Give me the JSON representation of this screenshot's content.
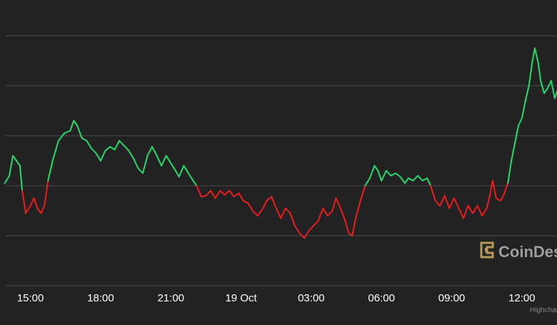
{
  "chart_data": {
    "type": "line",
    "title": "",
    "xlabel": "",
    "ylabel": "",
    "x_tick_labels": [
      "15:00",
      "18:00",
      "21:00",
      "19 Oct",
      "03:00",
      "06:00",
      "09:00",
      "12:00"
    ],
    "x_tick_hours": [
      0,
      3,
      6,
      9,
      12,
      15,
      18,
      21
    ],
    "x_range_hours": [
      -1.3,
      22.5
    ],
    "y_range_relative": [
      0,
      5.2
    ],
    "grid": true,
    "baseline_relative": 2.0,
    "colors": {
      "background": "#222222",
      "grid": "#4a4a4a",
      "up": "#26d96b",
      "down": "#ee1c1c",
      "axis_text": "#ffffff",
      "credit_text": "#888888",
      "logo_gold": "#b89a56",
      "logo_text": "#9d9d9d"
    },
    "series": [
      {
        "points": [
          [
            -1.1,
            2.05
          ],
          [
            -0.9,
            2.2
          ],
          [
            -0.75,
            2.6
          ],
          [
            -0.6,
            2.5
          ],
          [
            -0.45,
            2.4
          ],
          [
            -0.35,
            1.9
          ],
          [
            -0.2,
            1.45
          ],
          [
            0.0,
            1.6
          ],
          [
            0.15,
            1.75
          ],
          [
            0.3,
            1.55
          ],
          [
            0.45,
            1.45
          ],
          [
            0.6,
            1.6
          ],
          [
            0.75,
            2.1
          ],
          [
            0.95,
            2.5
          ],
          [
            1.2,
            2.9
          ],
          [
            1.45,
            3.05
          ],
          [
            1.7,
            3.1
          ],
          [
            1.85,
            3.3
          ],
          [
            2.0,
            3.2
          ],
          [
            2.2,
            2.95
          ],
          [
            2.4,
            2.9
          ],
          [
            2.6,
            2.75
          ],
          [
            2.8,
            2.65
          ],
          [
            3.0,
            2.5
          ],
          [
            3.2,
            2.7
          ],
          [
            3.4,
            2.78
          ],
          [
            3.6,
            2.72
          ],
          [
            3.8,
            2.9
          ],
          [
            4.0,
            2.8
          ],
          [
            4.2,
            2.7
          ],
          [
            4.4,
            2.55
          ],
          [
            4.6,
            2.35
          ],
          [
            4.8,
            2.25
          ],
          [
            5.0,
            2.6
          ],
          [
            5.2,
            2.78
          ],
          [
            5.4,
            2.6
          ],
          [
            5.6,
            2.4
          ],
          [
            5.8,
            2.6
          ],
          [
            6.0,
            2.45
          ],
          [
            6.2,
            2.3
          ],
          [
            6.35,
            2.18
          ],
          [
            6.55,
            2.4
          ],
          [
            6.75,
            2.25
          ],
          [
            6.95,
            2.1
          ],
          [
            7.1,
            2.0
          ],
          [
            7.3,
            1.78
          ],
          [
            7.5,
            1.8
          ],
          [
            7.7,
            1.9
          ],
          [
            7.9,
            1.75
          ],
          [
            8.1,
            1.9
          ],
          [
            8.3,
            1.82
          ],
          [
            8.5,
            1.9
          ],
          [
            8.7,
            1.78
          ],
          [
            8.9,
            1.85
          ],
          [
            9.1,
            1.7
          ],
          [
            9.3,
            1.65
          ],
          [
            9.5,
            1.5
          ],
          [
            9.7,
            1.4
          ],
          [
            9.9,
            1.52
          ],
          [
            10.1,
            1.7
          ],
          [
            10.3,
            1.78
          ],
          [
            10.5,
            1.55
          ],
          [
            10.7,
            1.35
          ],
          [
            10.9,
            1.55
          ],
          [
            11.1,
            1.45
          ],
          [
            11.3,
            1.2
          ],
          [
            11.5,
            1.05
          ],
          [
            11.7,
            0.95
          ],
          [
            11.9,
            1.1
          ],
          [
            12.1,
            1.2
          ],
          [
            12.3,
            1.3
          ],
          [
            12.5,
            1.55
          ],
          [
            12.7,
            1.4
          ],
          [
            12.9,
            1.5
          ],
          [
            13.05,
            1.75
          ],
          [
            13.25,
            1.55
          ],
          [
            13.45,
            1.3
          ],
          [
            13.6,
            1.05
          ],
          [
            13.75,
            1.0
          ],
          [
            13.9,
            1.35
          ],
          [
            14.1,
            1.7
          ],
          [
            14.3,
            2.0
          ],
          [
            14.5,
            2.15
          ],
          [
            14.7,
            2.4
          ],
          [
            14.85,
            2.3
          ],
          [
            15.0,
            2.1
          ],
          [
            15.2,
            2.3
          ],
          [
            15.4,
            2.2
          ],
          [
            15.6,
            2.25
          ],
          [
            15.8,
            2.18
          ],
          [
            16.0,
            2.05
          ],
          [
            16.15,
            2.15
          ],
          [
            16.35,
            2.1
          ],
          [
            16.55,
            2.2
          ],
          [
            16.75,
            2.1
          ],
          [
            16.95,
            2.15
          ],
          [
            17.1,
            2.0
          ],
          [
            17.3,
            1.7
          ],
          [
            17.5,
            1.6
          ],
          [
            17.7,
            1.8
          ],
          [
            17.9,
            1.55
          ],
          [
            18.1,
            1.75
          ],
          [
            18.3,
            1.55
          ],
          [
            18.5,
            1.35
          ],
          [
            18.7,
            1.6
          ],
          [
            18.9,
            1.45
          ],
          [
            19.1,
            1.6
          ],
          [
            19.3,
            1.4
          ],
          [
            19.5,
            1.55
          ],
          [
            19.65,
            1.85
          ],
          [
            19.75,
            2.1
          ],
          [
            19.9,
            1.75
          ],
          [
            20.1,
            1.7
          ],
          [
            20.25,
            1.85
          ],
          [
            20.4,
            2.05
          ],
          [
            20.55,
            2.5
          ],
          [
            20.7,
            2.85
          ],
          [
            20.85,
            3.2
          ],
          [
            21.0,
            3.35
          ],
          [
            21.15,
            3.7
          ],
          [
            21.3,
            4.0
          ],
          [
            21.45,
            4.5
          ],
          [
            21.55,
            4.75
          ],
          [
            21.7,
            4.45
          ],
          [
            21.8,
            4.1
          ],
          [
            21.95,
            3.85
          ],
          [
            22.1,
            3.95
          ],
          [
            22.25,
            4.1
          ],
          [
            22.4,
            3.75
          ],
          [
            22.55,
            3.95
          ],
          [
            22.7,
            4.15
          ],
          [
            22.85,
            3.85
          ],
          [
            23.0,
            3.6
          ],
          [
            23.15,
            3.8
          ],
          [
            23.3,
            4.1
          ],
          [
            23.45,
            3.9
          ],
          [
            23.6,
            3.95
          ]
        ]
      }
    ]
  },
  "watermark": {
    "brand": "CoinDesk",
    "logo_icon": "coindesk-logo-icon"
  },
  "credit": {
    "text": "Highcharts.com"
  }
}
